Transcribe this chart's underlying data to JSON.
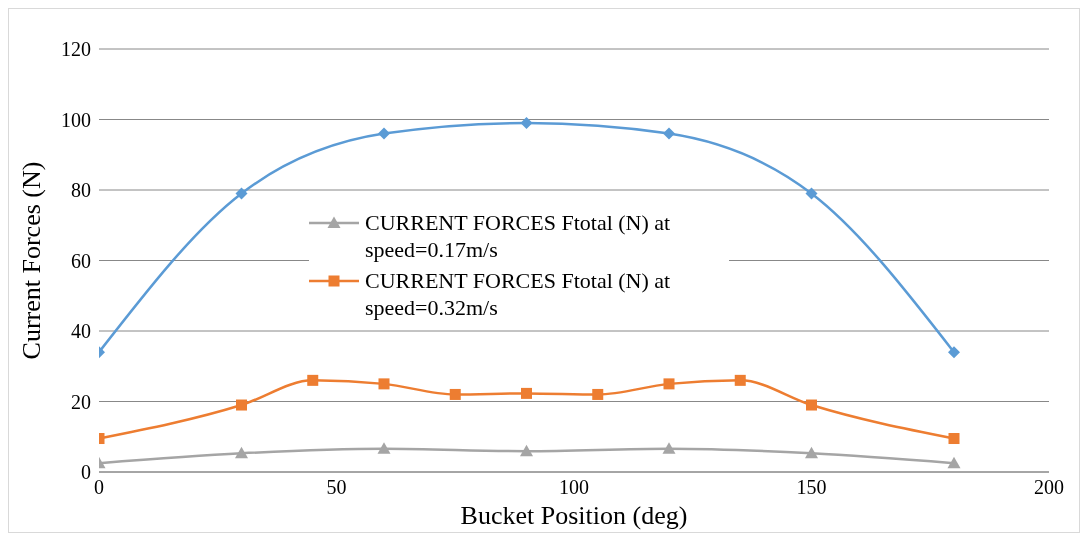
{
  "chart_data": {
    "type": "line",
    "xlabel": "Bucket Position (deg)",
    "ylabel": "Current Forces (N)",
    "xlim": [
      0,
      200
    ],
    "xticks": [
      0,
      50,
      100,
      150,
      200
    ],
    "ylim": [
      0,
      120
    ],
    "yticks": [
      0,
      20,
      40,
      60,
      80,
      100,
      120
    ],
    "grid": "y",
    "legend": "center",
    "line_style": "solid",
    "series": [
      {
        "color": "#5b9bd5",
        "marker": "diamond",
        "x": [
          0,
          30,
          60,
          90,
          120,
          150,
          180
        ],
        "values": [
          34,
          79,
          96,
          99,
          96,
          79,
          34
        ]
      },
      {
        "name": "CURRENT FORCES Ftotal (N) at speed=0.17m/s",
        "color": "#a5a5a5",
        "marker": "triangle",
        "x": [
          0,
          30,
          60,
          90,
          120,
          150,
          180
        ],
        "values": [
          2.5,
          5.3,
          6.6,
          5.9,
          6.6,
          5.3,
          2.5
        ]
      },
      {
        "name": "CURRENT FORCES Ftotal (N) at speed=0.32m/s",
        "color": "#ed7d31",
        "marker": "square",
        "x": [
          0,
          30,
          45,
          60,
          75,
          90,
          105,
          120,
          135,
          150,
          180
        ],
        "values": [
          9.5,
          19,
          26,
          25,
          22,
          22.3,
          22,
          25,
          26,
          19,
          9.5
        ]
      }
    ]
  }
}
